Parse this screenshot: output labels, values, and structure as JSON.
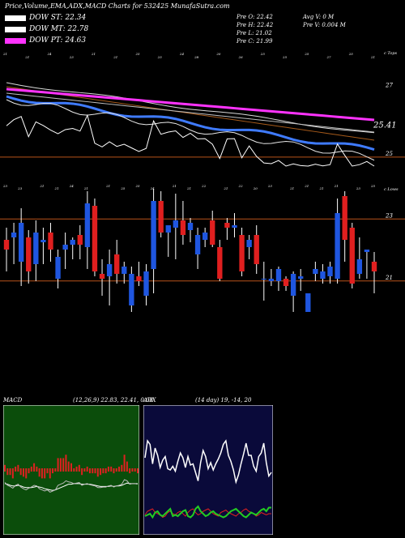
{
  "header": {
    "title": "Price,Volume,EMA,ADX,MACD Charts for 532425 MunafaSutra.com",
    "legend": [
      {
        "label": "DOW ST: 22.34",
        "color": "#ffffff"
      },
      {
        "label": "DOW MT: 22.78",
        "color": "#ffffff"
      },
      {
        "label": "DOW PT: 24.63",
        "color": "#ff33ff"
      }
    ],
    "ohlc_left": [
      "Pre O: 22.42",
      "Pre H: 22.42",
      "Pre L: 21.02",
      "Pre C: 21.99"
    ],
    "ohlc_right": [
      "Avg V: 0 M",
      "Pre V: 0.004 M"
    ]
  },
  "colors": {
    "bull": "#1f56e0",
    "bear": "#e01f1f",
    "ema_short": "#3f7bff",
    "ema_pink": "#ff33ff",
    "ema_brown": "#a65a1a",
    "level_line": "#b8531a"
  },
  "chart_data": [
    {
      "type": "candlestick",
      "title": "",
      "corner_labels": [
        "c Tops",
        "c Lows"
      ],
      "price_labels": [
        "27",
        "25.41",
        "25",
        "23",
        "21"
      ],
      "level_lines": [
        25,
        23,
        21
      ],
      "ylim": [
        20,
        28.5
      ],
      "candles": [
        {
          "o": 23.3,
          "h": 23.8,
          "l": 22.0,
          "c": 22.9
        },
        {
          "o": 23.4,
          "h": 24.0,
          "l": 22.3,
          "c": 23.6
        },
        {
          "o": 22.4,
          "h": 24.6,
          "l": 21.4,
          "c": 24.0
        },
        {
          "o": 23.4,
          "h": 23.7,
          "l": 21.5,
          "c": 22.0
        },
        {
          "o": 22.3,
          "h": 24.1,
          "l": 21.6,
          "c": 23.6
        },
        {
          "o": 23.2,
          "h": 23.8,
          "l": 22.3,
          "c": 23.3
        },
        {
          "o": 23.6,
          "h": 24.0,
          "l": 22.4,
          "c": 22.9
        },
        {
          "o": 21.7,
          "h": 22.9,
          "l": 21.3,
          "c": 22.6
        },
        {
          "o": 22.9,
          "h": 23.6,
          "l": 22.1,
          "c": 23.1
        },
        {
          "o": 23.1,
          "h": 23.4,
          "l": 22.5,
          "c": 23.3
        },
        {
          "o": 23.5,
          "h": 23.9,
          "l": 22.5,
          "c": 23.1
        },
        {
          "o": 23.0,
          "h": 25.3,
          "l": 22.1,
          "c": 24.8
        },
        {
          "o": 24.7,
          "h": 25.0,
          "l": 21.8,
          "c": 22.0
        },
        {
          "o": 21.9,
          "h": 22.5,
          "l": 21.0,
          "c": 21.7
        },
        {
          "o": 21.8,
          "h": 22.9,
          "l": 20.6,
          "c": 22.3
        },
        {
          "o": 22.7,
          "h": 23.3,
          "l": 21.5,
          "c": 21.9
        },
        {
          "o": 21.9,
          "h": 22.4,
          "l": 21.5,
          "c": 22.2
        },
        {
          "o": 20.6,
          "h": 22.2,
          "l": 20.3,
          "c": 21.9
        },
        {
          "o": 21.8,
          "h": 22.4,
          "l": 21.4,
          "c": 21.6
        },
        {
          "o": 21.0,
          "h": 22.3,
          "l": 20.6,
          "c": 22.0
        },
        {
          "o": 22.1,
          "h": 25.4,
          "l": 21.1,
          "c": 24.9
        },
        {
          "o": 24.9,
          "h": 25.3,
          "l": 23.4,
          "c": 23.6
        },
        {
          "o": 23.6,
          "h": 23.9,
          "l": 22.6,
          "c": 23.9
        },
        {
          "o": 23.8,
          "h": 25.2,
          "l": 22.5,
          "c": 24.1
        },
        {
          "o": 24.1,
          "h": 24.9,
          "l": 23.1,
          "c": 23.5
        },
        {
          "o": 23.7,
          "h": 24.2,
          "l": 23.2,
          "c": 24.0
        },
        {
          "o": 22.7,
          "h": 23.8,
          "l": 22.1,
          "c": 23.5
        },
        {
          "o": 23.3,
          "h": 23.8,
          "l": 23.0,
          "c": 23.6
        },
        {
          "o": 24.1,
          "h": 24.5,
          "l": 23.0,
          "c": 23.1
        },
        {
          "o": 23.0,
          "h": 23.3,
          "l": 21.6,
          "c": 21.7
        },
        {
          "o": 24.0,
          "h": 24.2,
          "l": 23.3,
          "c": 23.8
        },
        {
          "o": 23.8,
          "h": 24.4,
          "l": 23.4,
          "c": 23.9
        },
        {
          "o": 23.5,
          "h": 23.8,
          "l": 21.8,
          "c": 22.0
        },
        {
          "o": 23.0,
          "h": 23.5,
          "l": 22.5,
          "c": 23.3
        },
        {
          "o": 23.5,
          "h": 23.9,
          "l": 21.9,
          "c": 22.3
        },
        {
          "o": 21.7,
          "h": 22.4,
          "l": 20.8,
          "c": 21.7
        },
        {
          "o": 21.6,
          "h": 22.1,
          "l": 21.4,
          "c": 21.7
        },
        {
          "o": 21.6,
          "h": 22.2,
          "l": 21.2,
          "c": 22.1
        },
        {
          "o": 21.7,
          "h": 21.8,
          "l": 21.2,
          "c": 21.4
        },
        {
          "o": 21.0,
          "h": 22.0,
          "l": 20.3,
          "c": 21.9
        },
        {
          "o": 21.7,
          "h": 22.1,
          "l": 21.2,
          "c": 21.8
        },
        {
          "o": 20.3,
          "h": 21.1,
          "l": 20.3,
          "c": 21.1
        },
        {
          "o": 21.9,
          "h": 22.4,
          "l": 21.6,
          "c": 22.1
        },
        {
          "o": 21.7,
          "h": 22.3,
          "l": 21.5,
          "c": 22.0
        },
        {
          "o": 21.8,
          "h": 22.4,
          "l": 21.5,
          "c": 22.2
        },
        {
          "o": 21.7,
          "h": 25.0,
          "l": 21.5,
          "c": 24.4
        },
        {
          "o": 25.1,
          "h": 25.3,
          "l": 22.4,
          "c": 23.3
        },
        {
          "o": 23.8,
          "h": 24.0,
          "l": 21.3,
          "c": 21.5
        },
        {
          "o": 21.9,
          "h": 23.4,
          "l": 21.7,
          "c": 22.5
        },
        {
          "o": 22.8,
          "h": 22.9,
          "l": 21.7,
          "c": 22.9
        },
        {
          "o": 22.4,
          "h": 22.8,
          "l": 21.1,
          "c": 22.0
        }
      ],
      "tops_annotations": [
        "21",
        "21",
        "24",
        "23",
        "21",
        "21",
        "25",
        "25",
        "24",
        "28",
        "20",
        "26",
        "25",
        "25",
        "25",
        "27",
        "25",
        "21"
      ],
      "lows_annotations": [
        "23",
        "23",
        "21",
        "21",
        "24",
        "21",
        "21",
        "25",
        "25",
        "24",
        "21",
        "21",
        "22",
        "21",
        "22",
        "20",
        "23",
        "21",
        "21",
        "21",
        "21",
        "23",
        "25"
      ]
    },
    {
      "type": "line",
      "name_label": "MACD",
      "params_label": "(12,26,9) 22.83, 22.41, 0.08",
      "ylim": [
        -1,
        1
      ],
      "macd": [
        -0.25,
        -0.3,
        -0.32,
        -0.35,
        -0.3,
        -0.28,
        -0.33,
        -0.36,
        -0.38,
        -0.35,
        -0.33,
        -0.3,
        -0.31,
        -0.36,
        -0.38,
        -0.4,
        -0.38,
        -0.42,
        -0.4,
        -0.38,
        -0.3,
        -0.28,
        -0.26,
        -0.22,
        -0.24,
        -0.25,
        -0.27,
        -0.26,
        -0.25,
        -0.3,
        -0.28,
        -0.27,
        -0.29,
        -0.3,
        -0.31,
        -0.34,
        -0.34,
        -0.33,
        -0.33,
        -0.31,
        -0.3,
        -0.33,
        -0.31,
        -0.3,
        -0.28,
        -0.2,
        -0.22,
        -0.28,
        -0.27,
        -0.27,
        -0.28
      ],
      "signal": [
        -0.27,
        -0.28,
        -0.3,
        -0.31,
        -0.31,
        -0.3,
        -0.31,
        -0.33,
        -0.34,
        -0.34,
        -0.34,
        -0.33,
        -0.32,
        -0.33,
        -0.34,
        -0.36,
        -0.37,
        -0.38,
        -0.39,
        -0.38,
        -0.36,
        -0.34,
        -0.32,
        -0.3,
        -0.28,
        -0.28,
        -0.27,
        -0.27,
        -0.27,
        -0.28,
        -0.28,
        -0.28,
        -0.28,
        -0.29,
        -0.3,
        -0.31,
        -0.32,
        -0.32,
        -0.32,
        -0.32,
        -0.31,
        -0.32,
        -0.31,
        -0.31,
        -0.3,
        -0.28,
        -0.26,
        -0.27,
        -0.27,
        -0.27,
        -0.27
      ]
    },
    {
      "type": "line",
      "name_label": "ADX",
      "params_label": "(14 day) 19, -14, 20",
      "ylim": [
        0,
        100
      ],
      "adx": [
        60,
        74,
        71,
        55,
        68,
        62,
        52,
        58,
        61,
        51,
        50,
        53,
        49,
        57,
        64,
        60,
        52,
        61,
        54,
        55,
        48,
        41,
        56,
        66,
        61,
        51,
        56,
        50,
        55,
        59,
        64,
        71,
        74,
        62,
        57,
        50,
        40,
        46,
        55,
        63,
        72,
        62,
        62,
        53,
        49,
        61,
        64,
        72,
        56,
        45,
        48
      ],
      "di_plus": [
        12,
        13,
        14,
        11,
        15,
        16,
        13,
        12,
        14,
        16,
        18,
        12,
        13,
        12,
        14,
        16,
        17,
        12,
        11,
        13,
        18,
        20,
        16,
        14,
        12,
        13,
        15,
        16,
        14,
        13,
        12,
        11,
        12,
        14,
        16,
        17,
        18,
        16,
        14,
        12,
        11,
        13,
        15,
        14,
        13,
        15,
        17,
        18,
        16,
        19,
        19
      ],
      "di_minus": [
        13,
        16,
        17,
        18,
        15,
        14,
        13,
        11,
        12,
        15,
        16,
        14,
        13,
        15,
        16,
        14,
        12,
        15,
        17,
        18,
        15,
        13,
        14,
        16,
        17,
        18,
        16,
        14,
        13,
        12,
        15,
        16,
        17,
        15,
        14,
        13,
        12,
        14,
        15,
        17,
        18,
        16,
        15,
        14,
        12,
        13,
        15,
        14,
        13,
        14,
        14
      ]
    }
  ]
}
